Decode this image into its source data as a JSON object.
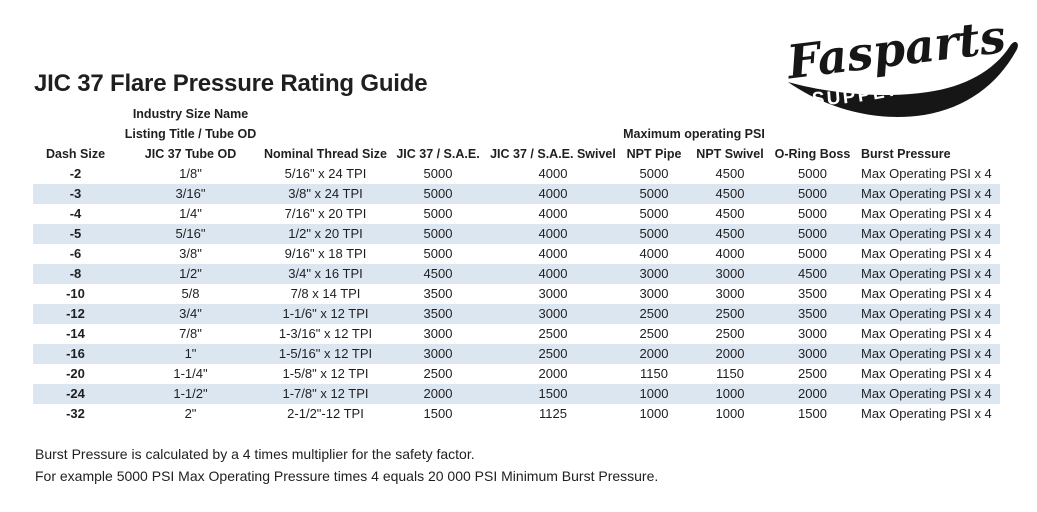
{
  "logo": {
    "brand": "Fasparts",
    "sub": "Supply co."
  },
  "title": "JIC 37 Flare Pressure Rating Guide",
  "table": {
    "col2_header_line1": "Industry Size Name",
    "col2_header_line2": "Listing Title / Tube OD",
    "psi_group_header": "Maximum operating PSI",
    "columns": [
      "Dash Size",
      "JIC 37 Tube OD",
      "Nominal Thread Size",
      "JIC 37 / S.A.E.",
      "JIC 37 / S.A.E. Swivel",
      "NPT Pipe",
      "NPT Swivel",
      "O-Ring Boss",
      "Burst Pressure"
    ],
    "rows": [
      [
        "-2",
        "1/8\"",
        "5/16\" x 24 TPI",
        "5000",
        "4000",
        "5000",
        "4500",
        "5000",
        "Max Operating PSI x 4"
      ],
      [
        "-3",
        "3/16\"",
        "3/8\" x 24 TPI",
        "5000",
        "4000",
        "5000",
        "4500",
        "5000",
        "Max Operating PSI x 4"
      ],
      [
        "-4",
        "1/4\"",
        "7/16\" x 20 TPI",
        "5000",
        "4000",
        "5000",
        "4500",
        "5000",
        "Max Operating PSI x 4"
      ],
      [
        "-5",
        "5/16\"",
        "1/2\" x 20 TPI",
        "5000",
        "4000",
        "5000",
        "4500",
        "5000",
        "Max Operating PSI x 4"
      ],
      [
        "-6",
        "3/8\"",
        "9/16\" x 18 TPI",
        "5000",
        "4000",
        "4000",
        "4000",
        "5000",
        "Max Operating PSI x 4"
      ],
      [
        "-8",
        "1/2\"",
        "3/4\" x 16 TPI",
        "4500",
        "4000",
        "3000",
        "3000",
        "4500",
        "Max Operating PSI x 4"
      ],
      [
        "-10",
        "5/8",
        "7/8 x 14 TPI",
        "3500",
        "3000",
        "3000",
        "3000",
        "3500",
        "Max Operating PSI x 4"
      ],
      [
        "-12",
        "3/4\"",
        "1-1/6\" x 12 TPI",
        "3500",
        "3000",
        "2500",
        "2500",
        "3500",
        "Max Operating PSI x 4"
      ],
      [
        "-14",
        "7/8\"",
        "1-3/16\" x 12 TPI",
        "3000",
        "2500",
        "2500",
        "2500",
        "3000",
        "Max Operating PSI x 4"
      ],
      [
        "-16",
        "1\"",
        "1-5/16\" x 12 TPI",
        "3000",
        "2500",
        "2000",
        "2000",
        "3000",
        "Max Operating PSI x 4"
      ],
      [
        "-20",
        "1-1/4\"",
        "1-5/8\" x 12 TPI",
        "2500",
        "2000",
        "1150",
        "1150",
        "2500",
        "Max Operating PSI x 4"
      ],
      [
        "-24",
        "1-1/2\"",
        "1-7/8\" x 12 TPI",
        "2000",
        "1500",
        "1000",
        "1000",
        "2000",
        "Max Operating PSI x 4"
      ],
      [
        "-32",
        "2\"",
        "2-1/2\"-12 TPI",
        "1500",
        "1125",
        "1000",
        "1000",
        "1500",
        "Max Operating PSI x 4"
      ]
    ]
  },
  "footer": {
    "line1": "Burst Pressure is calculated by a 4 times multiplier for the safety factor.",
    "line2": "For example 5000 PSI Max Operating Pressure times 4 equals 20 000 PSI Minimum Burst Pressure."
  },
  "colors": {
    "row_alt": "#dce6f1",
    "text": "#1f1f1f",
    "logo_ink": "#161616"
  }
}
